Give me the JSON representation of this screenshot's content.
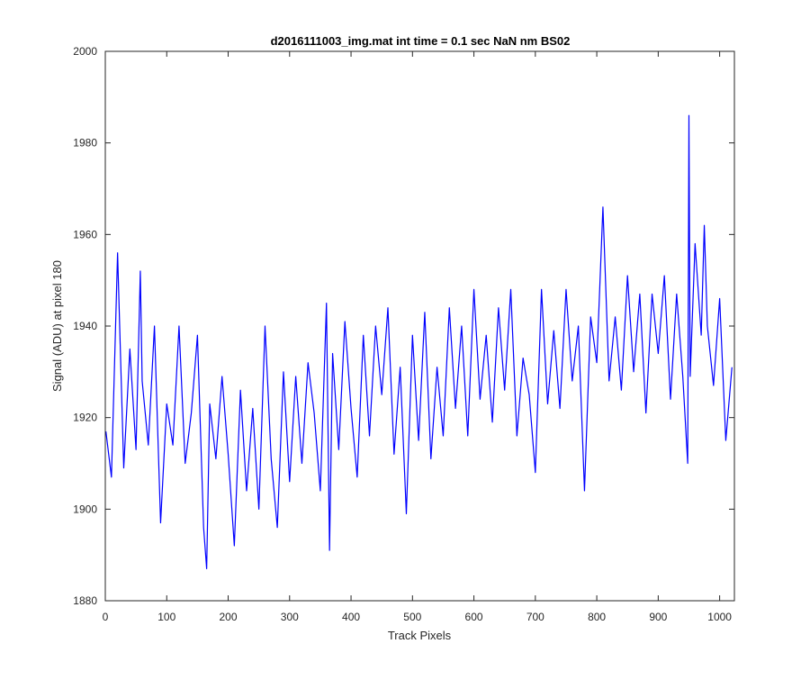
{
  "chart_data": {
    "type": "line",
    "title": "d2016111003_img.mat int time = 0.1 sec  NaN nm BS02",
    "xlabel": "Track Pixels",
    "ylabel": "Signal (ADU) at pixel 180",
    "xlim": [
      0,
      1024
    ],
    "ylim": [
      1880,
      2000
    ],
    "xticks": [
      0,
      100,
      200,
      300,
      400,
      500,
      600,
      700,
      800,
      900,
      1000
    ],
    "xtick_labels": [
      "0",
      "100",
      "200",
      "300",
      "400",
      "500",
      "600",
      "700",
      "800",
      "900",
      "1000"
    ],
    "yticks": [
      1880,
      1900,
      1920,
      1940,
      1960,
      1980,
      2000
    ],
    "ytick_labels": [
      "1880",
      "1900",
      "1920",
      "1940",
      "1960",
      "1980",
      "2000"
    ],
    "grid": false,
    "legend": "none",
    "series": [
      {
        "color": "#0000ff",
        "x": [
          1,
          10,
          20,
          30,
          40,
          50,
          57,
          60,
          70,
          80,
          90,
          100,
          110,
          120,
          130,
          140,
          150,
          160,
          165,
          170,
          180,
          190,
          200,
          210,
          220,
          230,
          240,
          250,
          260,
          270,
          280,
          290,
          300,
          310,
          320,
          330,
          340,
          350,
          360,
          365,
          370,
          380,
          390,
          400,
          410,
          420,
          430,
          440,
          450,
          460,
          470,
          480,
          490,
          500,
          510,
          520,
          530,
          540,
          550,
          560,
          570,
          580,
          590,
          600,
          610,
          620,
          630,
          640,
          650,
          660,
          670,
          680,
          690,
          700,
          710,
          720,
          730,
          740,
          750,
          760,
          770,
          780,
          790,
          800,
          805,
          810,
          820,
          830,
          840,
          850,
          860,
          870,
          880,
          890,
          900,
          910,
          920,
          930,
          940,
          948,
          950,
          952,
          960,
          970,
          975,
          980,
          990,
          1000,
          1010,
          1020
        ],
        "y": [
          1917,
          1907,
          1956,
          1909,
          1935,
          1913,
          1952,
          1928,
          1914,
          1940,
          1897,
          1923,
          1914,
          1940,
          1910,
          1921,
          1938,
          1896,
          1887,
          1923,
          1911,
          1929,
          1912,
          1892,
          1926,
          1904,
          1922,
          1900,
          1940,
          1911,
          1896,
          1930,
          1906,
          1929,
          1910,
          1932,
          1921,
          1904,
          1945,
          1891,
          1934,
          1913,
          1941,
          1922,
          1907,
          1938,
          1916,
          1940,
          1925,
          1944,
          1912,
          1931,
          1899,
          1938,
          1915,
          1943,
          1911,
          1931,
          1916,
          1944,
          1922,
          1940,
          1916,
          1948,
          1924,
          1938,
          1919,
          1944,
          1926,
          1948,
          1916,
          1933,
          1925,
          1908,
          1948,
          1923,
          1939,
          1922,
          1948,
          1928,
          1940,
          1904,
          1942,
          1932,
          1949,
          1966,
          1928,
          1942,
          1926,
          1951,
          1930,
          1947,
          1921,
          1947,
          1934,
          1951,
          1924,
          1947,
          1929,
          1910,
          1986,
          1929,
          1958,
          1938,
          1962,
          1940,
          1927,
          1946,
          1915,
          1931
        ]
      }
    ]
  }
}
